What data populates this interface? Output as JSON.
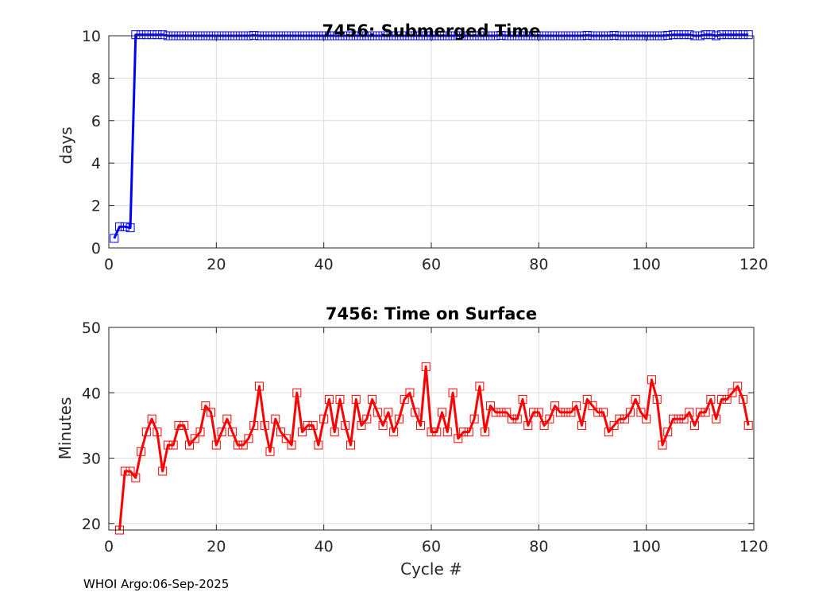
{
  "footer": "WHOI Argo:06-Sep-2025",
  "chart_data": [
    {
      "type": "line",
      "title": "7456: Submerged Time",
      "xlabel": "",
      "ylabel": "days",
      "xlim": [
        0,
        120
      ],
      "ylim": [
        0,
        10
      ],
      "xticks": [
        0,
        20,
        40,
        60,
        80,
        100,
        120
      ],
      "yticks": [
        0,
        2,
        4,
        6,
        8,
        10
      ],
      "grid": true,
      "color": "#0000ff",
      "marker": "square",
      "series": [
        {
          "name": "Submerged Time",
          "x": [
            1,
            2,
            3,
            4,
            5,
            6,
            7,
            8,
            9,
            10,
            11,
            12,
            13,
            14,
            15,
            16,
            17,
            18,
            19,
            20,
            21,
            22,
            23,
            24,
            25,
            26,
            27,
            28,
            29,
            30,
            31,
            32,
            33,
            34,
            35,
            36,
            37,
            38,
            39,
            40,
            41,
            42,
            43,
            44,
            45,
            46,
            47,
            48,
            49,
            50,
            51,
            52,
            53,
            54,
            55,
            56,
            57,
            58,
            59,
            60,
            61,
            62,
            63,
            64,
            65,
            66,
            67,
            68,
            69,
            70,
            71,
            72,
            73,
            74,
            75,
            76,
            77,
            78,
            79,
            80,
            81,
            82,
            83,
            84,
            85,
            86,
            87,
            88,
            89,
            90,
            91,
            92,
            93,
            94,
            95,
            96,
            97,
            98,
            99,
            100,
            101,
            102,
            103,
            104,
            105,
            106,
            107,
            108,
            109,
            110,
            111,
            112,
            113,
            114,
            115,
            116,
            117,
            118,
            119
          ],
          "values": [
            0.45,
            1.0,
            1.0,
            0.95,
            10.05,
            10.05,
            10.05,
            10.05,
            10.05,
            10.05,
            10.0,
            10.0,
            10.0,
            10.0,
            10.0,
            10.0,
            10.0,
            10.0,
            10.0,
            10.0,
            10.0,
            10.0,
            10.0,
            10.0,
            10.0,
            10.0,
            10.02,
            10.0,
            10.0,
            10.0,
            10.0,
            10.0,
            10.0,
            10.0,
            10.0,
            10.0,
            10.0,
            10.0,
            10.0,
            10.0,
            10.0,
            10.0,
            10.0,
            10.0,
            10.0,
            10.0,
            10.0,
            10.0,
            10.0,
            10.0,
            10.0,
            10.0,
            10.0,
            10.0,
            10.0,
            10.0,
            10.0,
            10.0,
            10.0,
            10.0,
            10.0,
            10.0,
            10.0,
            10.0,
            10.0,
            10.0,
            10.0,
            10.0,
            10.0,
            10.0,
            10.0,
            10.0,
            10.02,
            10.0,
            10.0,
            10.0,
            10.0,
            10.0,
            10.0,
            10.0,
            10.0,
            10.0,
            10.0,
            10.0,
            10.0,
            10.0,
            10.0,
            10.0,
            10.02,
            10.0,
            10.0,
            10.0,
            10.0,
            10.02,
            10.0,
            10.0,
            10.0,
            10.0,
            10.0,
            10.0,
            10.0,
            10.0,
            10.0,
            10.02,
            10.05,
            10.05,
            10.05,
            10.05,
            10.0,
            10.0,
            10.05,
            10.05,
            10.0,
            10.05,
            10.05,
            10.05,
            10.05,
            10.05,
            10.05
          ]
        }
      ]
    },
    {
      "type": "line",
      "title": "7456: Time on Surface",
      "xlabel": "Cycle #",
      "ylabel": "Minutes",
      "xlim": [
        0,
        120
      ],
      "ylim": [
        19,
        50
      ],
      "xticks": [
        0,
        20,
        40,
        60,
        80,
        100,
        120
      ],
      "yticks": [
        20,
        30,
        40,
        50
      ],
      "grid": true,
      "color": "#ff0000",
      "marker": "square",
      "series": [
        {
          "name": "Time on Surface",
          "x": [
            2,
            3,
            4,
            5,
            6,
            7,
            8,
            9,
            10,
            11,
            12,
            13,
            14,
            15,
            16,
            17,
            18,
            19,
            20,
            21,
            22,
            23,
            24,
            25,
            26,
            27,
            28,
            29,
            30,
            31,
            32,
            33,
            34,
            35,
            36,
            37,
            38,
            39,
            40,
            41,
            42,
            43,
            44,
            45,
            46,
            47,
            48,
            49,
            50,
            51,
            52,
            53,
            54,
            55,
            56,
            57,
            58,
            59,
            60,
            61,
            62,
            63,
            64,
            65,
            66,
            67,
            68,
            69,
            70,
            71,
            72,
            73,
            74,
            75,
            76,
            77,
            78,
            79,
            80,
            81,
            82,
            83,
            84,
            85,
            86,
            87,
            88,
            89,
            90,
            91,
            92,
            93,
            94,
            95,
            96,
            97,
            98,
            99,
            100,
            101,
            102,
            103,
            104,
            105,
            106,
            107,
            108,
            109,
            110,
            111,
            112,
            113,
            114,
            115,
            116,
            117,
            118,
            119
          ],
          "values": [
            19,
            28,
            28,
            27,
            31,
            34,
            36,
            34,
            28,
            32,
            32,
            35,
            35,
            32,
            33,
            34,
            38,
            37,
            32,
            34,
            36,
            34,
            32,
            32,
            33,
            35,
            41,
            35,
            31,
            36,
            34,
            33,
            32,
            40,
            34,
            35,
            35,
            32,
            36,
            39,
            34,
            39,
            35,
            32,
            39,
            35,
            36,
            39,
            37,
            35,
            37,
            34,
            36,
            39,
            40,
            37,
            35,
            44,
            34,
            34,
            37,
            34,
            40,
            33,
            34,
            34,
            36,
            41,
            34,
            38,
            37,
            37,
            37,
            36,
            36,
            39,
            35,
            37,
            37,
            35,
            36,
            38,
            37,
            37,
            37,
            38,
            35,
            39,
            38,
            37,
            37,
            34,
            35,
            36,
            36,
            37,
            39,
            37,
            36,
            42,
            39,
            32,
            34,
            36,
            36,
            36,
            37,
            35,
            37,
            37,
            39,
            36,
            39,
            39,
            40,
            41,
            39,
            35
          ]
        }
      ]
    }
  ]
}
